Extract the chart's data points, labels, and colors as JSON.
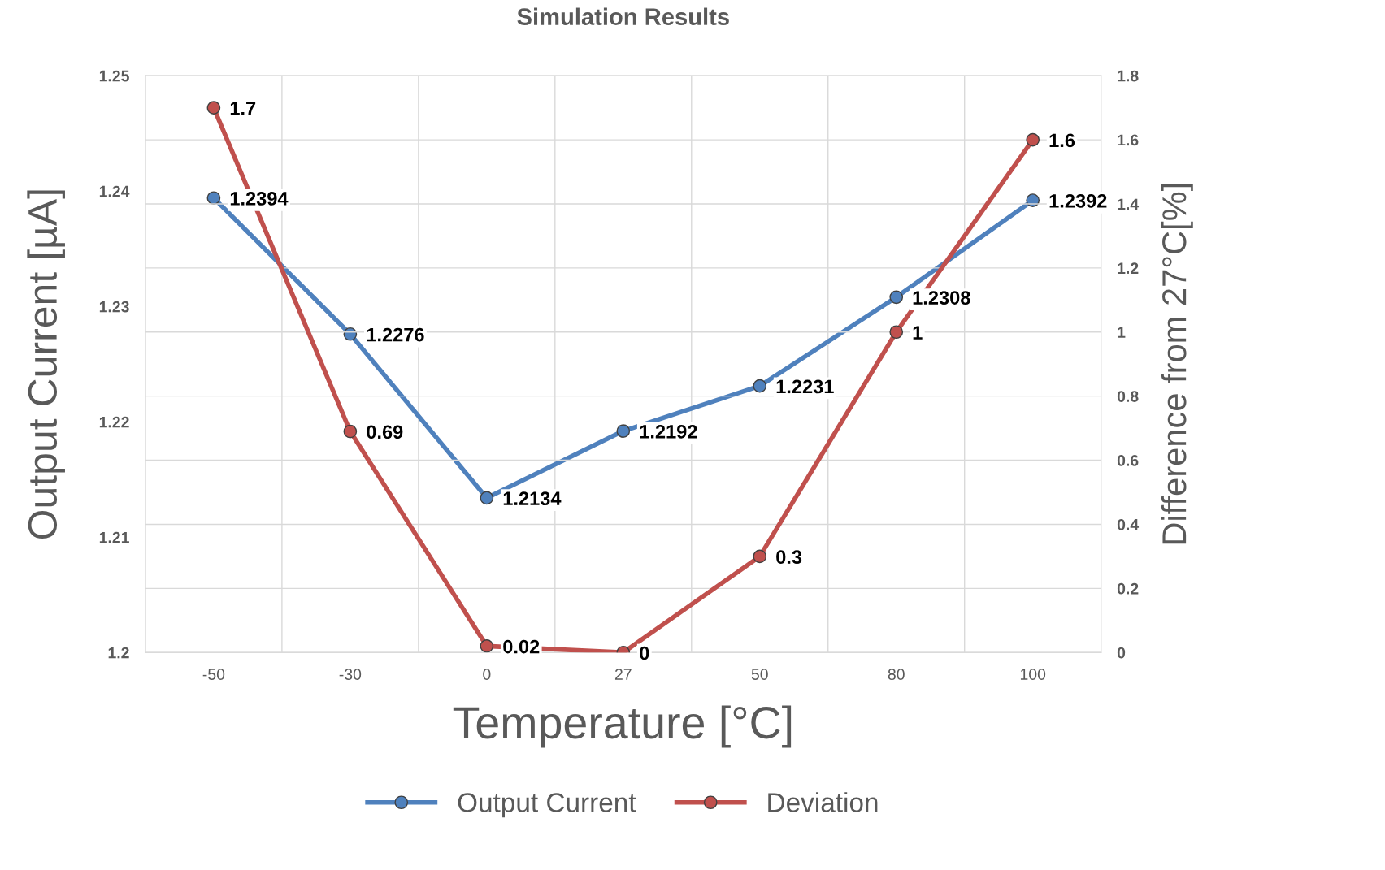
{
  "chart_data": {
    "type": "line",
    "title": "Simulation Results",
    "xlabel": "Temperature [°C]",
    "ylabel": "Output Current [µA]",
    "y2label": "Difference from 27°C[%]",
    "categories": [
      "-50",
      "-30",
      "0",
      "27",
      "50",
      "80",
      "100"
    ],
    "series": [
      {
        "name": "Output Current",
        "color": "#4f81bd",
        "values": [
          1.2394,
          1.2276,
          1.2134,
          1.2192,
          1.2231,
          1.2308,
          1.2392
        ]
      },
      {
        "name": "Deviation",
        "color": "#c0504d",
        "axis": "y2",
        "values": [
          1.7,
          0.69,
          0.02,
          0,
          0.3,
          1,
          1.6
        ]
      }
    ],
    "ylim": [
      1.2,
      1.25
    ],
    "yticks": [
      1.2,
      1.21,
      1.22,
      1.23,
      1.24,
      1.25
    ],
    "y2lim": [
      0,
      1.8
    ],
    "y2ticks": [
      0,
      0.2,
      0.4,
      0.6,
      0.8,
      1,
      1.2,
      1.4,
      1.6,
      1.8
    ],
    "data_labels": true,
    "grid": true,
    "legend": "bottom",
    "marker": "circle",
    "line_style": "solid"
  }
}
